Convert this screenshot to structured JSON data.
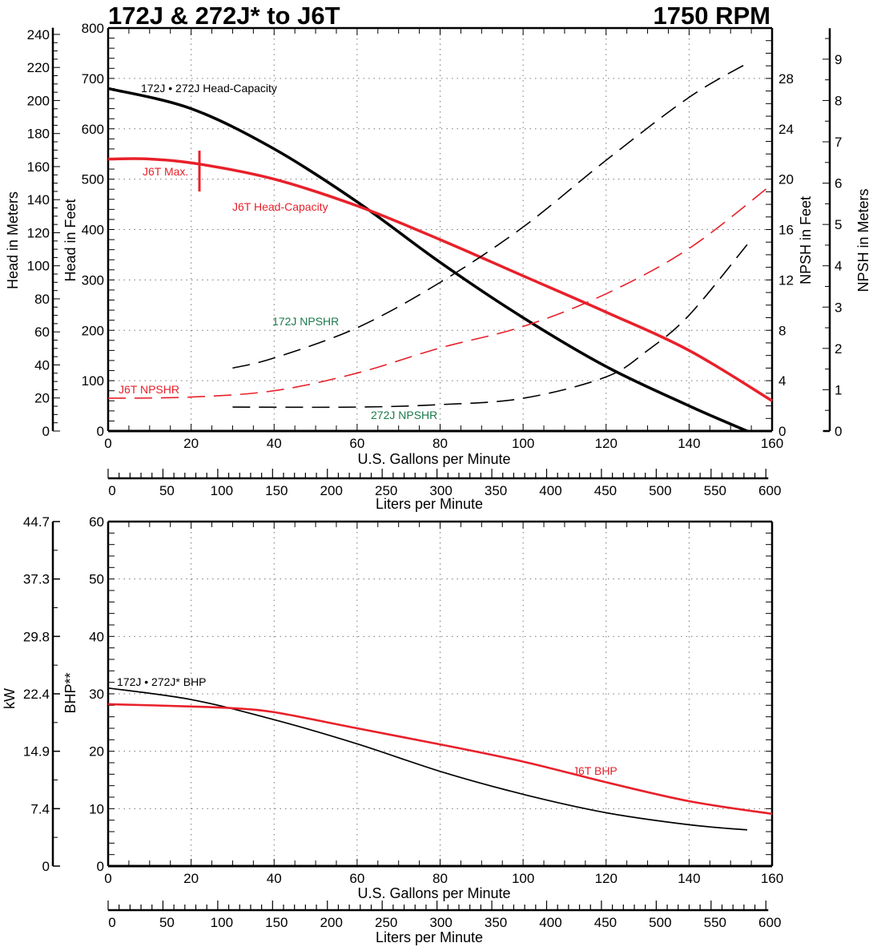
{
  "header": {
    "title": "172J & 272J* to J6T",
    "rpm": "1750 RPM"
  },
  "colors": {
    "black": "#000000",
    "red": "#e8202a",
    "green": "#1a7a4a",
    "grid": "#888888"
  },
  "chart_data": [
    {
      "type": "line",
      "title": "172J & 272J* to J6T — Head/NPSH vs Capacity",
      "xlabel": "U.S. Gallons per Minute",
      "x2label": "Liters per Minute",
      "ylabel": "Head in Feet",
      "y2label_left": "Head in Meters",
      "ylabel_right": "NPSH in Feet",
      "ylabel_right2": "NPSH in Meters",
      "xlim": [
        0,
        160
      ],
      "ylim": [
        0,
        800
      ],
      "x_ticks": [
        0,
        20,
        40,
        60,
        80,
        100,
        120,
        140,
        160
      ],
      "y_ticks": [
        0,
        100,
        200,
        300,
        400,
        500,
        600,
        700,
        800
      ],
      "meters_ticks": [
        0,
        20,
        40,
        60,
        80,
        100,
        120,
        140,
        160,
        180,
        200,
        220,
        240
      ],
      "npsh_ft_ticks": [
        0,
        4,
        8,
        12,
        16,
        20,
        24,
        28
      ],
      "npsh_m_ticks": [
        0,
        1,
        2,
        3,
        4,
        5,
        6,
        7,
        8,
        9
      ],
      "lpm_ticks": [
        0,
        50,
        100,
        150,
        200,
        250,
        300,
        350,
        400,
        450,
        500,
        550,
        600
      ],
      "grid": true,
      "series": [
        {
          "name": "172J • 272J Head-Capacity",
          "axis": "feet",
          "style": "solid",
          "color": "#000000",
          "x": [
            0,
            20,
            40,
            60,
            80,
            100,
            120,
            140,
            154
          ],
          "y": [
            680,
            640,
            560,
            455,
            335,
            225,
            128,
            50,
            0
          ]
        },
        {
          "name": "J6T Head-Capacity",
          "axis": "feet",
          "style": "solid",
          "color": "#e8202a",
          "x": [
            0,
            10,
            22,
            40,
            60,
            80,
            100,
            120,
            140,
            160
          ],
          "y": [
            540,
            540,
            530,
            500,
            447,
            380,
            308,
            236,
            160,
            60
          ]
        },
        {
          "name": "172J NPSHR",
          "axis": "npsh_ft",
          "style": "dashed",
          "color": "#000000",
          "x": [
            30,
            40,
            60,
            80,
            100,
            120,
            140,
            154
          ],
          "y": [
            5.0,
            5.8,
            8.2,
            11.8,
            16.2,
            21.5,
            26.5,
            29.2
          ]
        },
        {
          "name": "J6T NPSHR",
          "axis": "npsh_ft",
          "style": "dashed",
          "color": "#e8202a",
          "x": [
            0,
            20,
            40,
            60,
            80,
            100,
            120,
            140,
            160
          ],
          "y": [
            2.6,
            2.7,
            3.2,
            4.6,
            6.6,
            8.3,
            10.9,
            14.5,
            19.6
          ]
        },
        {
          "name": "272J NPSHR",
          "axis": "npsh_ft",
          "style": "dashed",
          "color": "#000000",
          "x": [
            30,
            60,
            80,
            100,
            120,
            130,
            140,
            154
          ],
          "y": [
            1.9,
            1.9,
            2.1,
            2.6,
            4.3,
            6.4,
            9.2,
            14.8
          ]
        }
      ],
      "annotations": [
        {
          "text": "172J • 272J Head-Capacity",
          "color": "#000000"
        },
        {
          "text": "J6T Max.",
          "color": "#e8202a",
          "x": 22
        },
        {
          "text": "J6T Head-Capacity",
          "color": "#e8202a"
        },
        {
          "text": "172J NPSHR",
          "color": "#1a7a4a"
        },
        {
          "text": "J6T NPSHR",
          "color": "#e8202a"
        },
        {
          "text": "272J NPSHR",
          "color": "#1a7a4a"
        }
      ]
    },
    {
      "type": "line",
      "title": "BHP vs Capacity",
      "xlabel": "U.S. Gallons per Minute",
      "x2label": "Liters per Minute",
      "ylabel": "BHP**",
      "y2label_left": "kW",
      "xlim": [
        0,
        160
      ],
      "ylim": [
        0,
        60
      ],
      "x_ticks": [
        0,
        20,
        40,
        60,
        80,
        100,
        120,
        140,
        160
      ],
      "y_ticks": [
        0,
        10,
        20,
        30,
        40,
        50,
        60
      ],
      "kw_ticks": [
        "0",
        "7.4",
        "14.9",
        "22.4",
        "29.8",
        "37.3",
        "44.7"
      ],
      "lpm_ticks": [
        0,
        50,
        100,
        150,
        200,
        250,
        300,
        350,
        400,
        450,
        500,
        550,
        600
      ],
      "grid": true,
      "series": [
        {
          "name": "172J • 272J* BHP",
          "style": "solid",
          "color": "#000000",
          "x": [
            0,
            20,
            40,
            60,
            80,
            100,
            120,
            140,
            154
          ],
          "y": [
            31,
            29,
            25.5,
            21.3,
            16.5,
            12.5,
            9.3,
            7.2,
            6.3
          ]
        },
        {
          "name": "J6T BHP",
          "style": "solid",
          "color": "#e8202a",
          "x": [
            0,
            20,
            30,
            40,
            60,
            80,
            100,
            120,
            140,
            160
          ],
          "y": [
            28.2,
            27.8,
            27.5,
            26.8,
            24,
            21.2,
            18.2,
            14.6,
            11.3,
            9.1
          ]
        }
      ]
    }
  ],
  "labels": {
    "head_meters": "Head in Meters",
    "head_feet": "Head in Feet",
    "npsh_feet": "NPSH in Feet",
    "npsh_meters": "NPSH in Meters",
    "gpm": "U.S. Gallons per Minute",
    "lpm": "Liters per Minute",
    "kw": "kW",
    "bhp": "BHP**",
    "ann_172_head": "172J • 272J Head-Capacity",
    "ann_j6t_max": "J6T Max.",
    "ann_j6t_head": "J6T Head-Capacity",
    "ann_172_npshr": "172J NPSHR",
    "ann_j6t_npshr": "J6T NPSHR",
    "ann_272_npshr": "272J NPSHR",
    "ann_172_bhp": "172J • 272J* BHP",
    "ann_j6t_bhp": "J6T BHP"
  }
}
